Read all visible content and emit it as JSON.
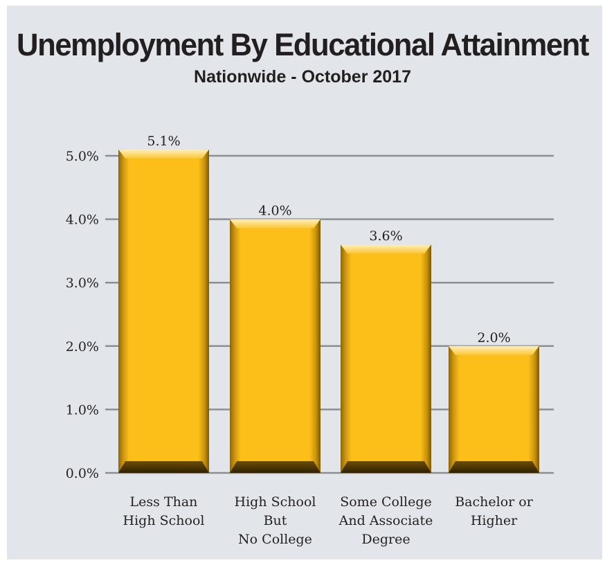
{
  "title": "Unemployment By Educational Attainment",
  "subtitle": "Nationwide - October 2017",
  "chart_data": {
    "type": "bar",
    "categories": [
      [
        "Less Than",
        "High School"
      ],
      [
        "High School",
        "But",
        "No College"
      ],
      [
        "Some College",
        "And Associate",
        "Degree"
      ],
      [
        "Bachelor or",
        "Higher"
      ]
    ],
    "values": [
      5.1,
      4.0,
      3.6,
      2.0
    ],
    "value_labels": [
      "5.1%",
      "4.0%",
      "3.6%",
      "2.0%"
    ],
    "ylim": [
      0,
      5
    ],
    "yticks": [
      {
        "value": 0,
        "label": "0.0%"
      },
      {
        "value": 1,
        "label": "1.0%"
      },
      {
        "value": 2,
        "label": "2.0%"
      },
      {
        "value": 3,
        "label": "3.0%"
      },
      {
        "value": 4,
        "label": "4.0%"
      },
      {
        "value": 5,
        "label": "5.0%"
      }
    ],
    "grid": true,
    "bar_color": "#fcbf19"
  }
}
